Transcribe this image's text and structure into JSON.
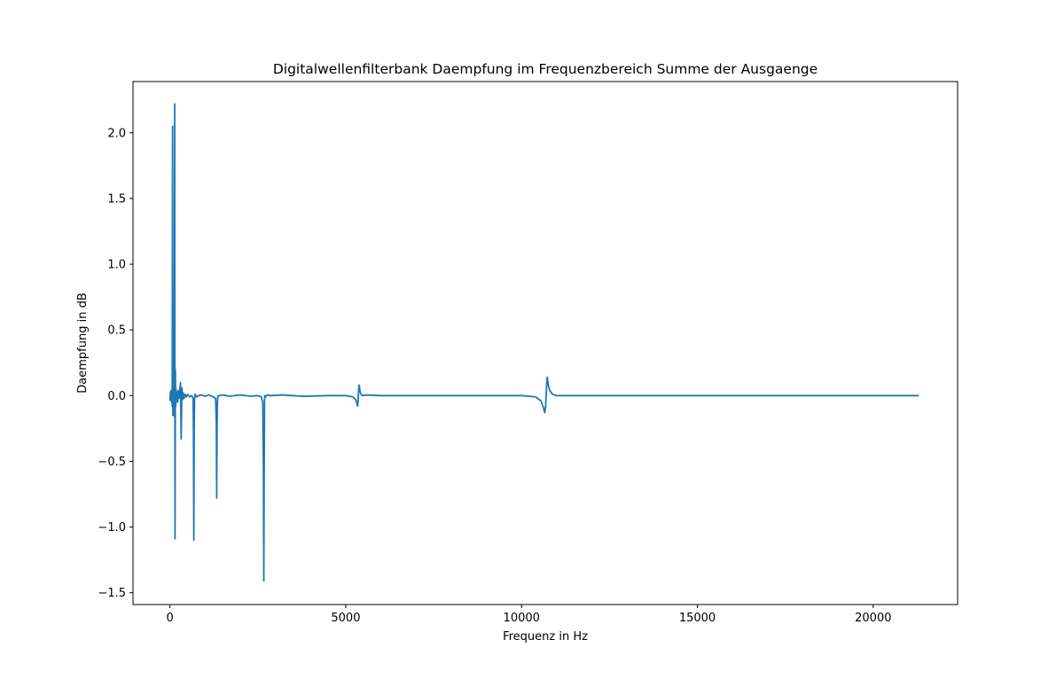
{
  "chart_data": {
    "type": "line",
    "title": "Digitalwellenfilterbank Daempfung im Frequenzbereich Summe der Ausgaenge",
    "xlabel": "Frequenz in Hz",
    "ylabel": "Daempfung in dB",
    "xlim": [
      -1050,
      22400
    ],
    "ylim": [
      -1.59,
      2.39
    ],
    "xticks": [
      0,
      5000,
      10000,
      15000,
      20000
    ],
    "xtick_labels": [
      "0",
      "5000",
      "10000",
      "15000",
      "20000"
    ],
    "yticks": [
      -1.5,
      -1.0,
      -0.5,
      0.0,
      0.5,
      1.0,
      1.5,
      2.0
    ],
    "ytick_labels": [
      "−1.5",
      "−1.0",
      "−0.5",
      "0.0",
      "0.5",
      "1.0",
      "1.5",
      "2.0"
    ],
    "grid": false,
    "legend": "none",
    "series": [
      {
        "color": "#1f77b4",
        "x": [
          0,
          15,
          25,
          35,
          45,
          55,
          65,
          75,
          85,
          95,
          105,
          115,
          125,
          135,
          145,
          155,
          165,
          175,
          185,
          200,
          220,
          240,
          260,
          280,
          300,
          320,
          340,
          360,
          380,
          400,
          430,
          460,
          500,
          560,
          620,
          660,
          670,
          680,
          690,
          700,
          720,
          760,
          820,
          900,
          1000,
          1100,
          1200,
          1300,
          1320,
          1330,
          1340,
          1350,
          1360,
          1380,
          1420,
          1500,
          1700,
          2000,
          2300,
          2500,
          2600,
          2640,
          2660,
          2670,
          2680,
          2690,
          2700,
          2720,
          2760,
          2850,
          3200,
          3800,
          4500,
          5000,
          5200,
          5280,
          5320,
          5340,
          5355,
          5370,
          5385,
          5400,
          5430,
          5480,
          5600,
          6000,
          7000,
          8000,
          9000,
          10000,
          10400,
          10550,
          10620,
          10660,
          10685,
          10700,
          10715,
          10730,
          10760,
          10800,
          10880,
          11000,
          11300,
          12000,
          14000,
          16000,
          18000,
          20000,
          21300
        ],
        "y": [
          -0.04,
          0.03,
          -0.03,
          0.04,
          -0.05,
          0.02,
          -0.08,
          2.05,
          -0.15,
          0.1,
          -0.12,
          0.35,
          -0.16,
          2.22,
          -1.09,
          0.2,
          -0.08,
          0.05,
          -0.04,
          0.03,
          -0.05,
          0.04,
          -0.02,
          0.03,
          0.1,
          -0.33,
          0.06,
          -0.03,
          0.02,
          -0.02,
          0.01,
          -0.01,
          0.01,
          -0.01,
          0.0,
          -0.02,
          -0.3,
          -1.1,
          -0.25,
          -0.02,
          0.01,
          -0.01,
          0.0,
          0.005,
          -0.005,
          0.005,
          -0.005,
          -0.02,
          -0.2,
          -0.78,
          -0.25,
          -0.05,
          -0.01,
          0.0,
          0.0,
          0.005,
          -0.005,
          0.005,
          -0.005,
          0.0,
          -0.01,
          -0.05,
          -0.6,
          -1.41,
          -0.6,
          -0.05,
          0.0,
          -0.01,
          0.005,
          0.0,
          0.005,
          -0.005,
          0.0,
          0.0,
          -0.01,
          -0.03,
          -0.06,
          -0.08,
          -0.02,
          0.06,
          0.08,
          0.04,
          0.01,
          0.0,
          0.005,
          0.0,
          0.0,
          0.0,
          0.0,
          0.0,
          -0.01,
          -0.04,
          -0.09,
          -0.13,
          -0.08,
          0.0,
          0.1,
          0.14,
          0.08,
          0.04,
          0.01,
          0.0,
          0.0,
          0.0,
          0.0,
          0.0,
          0.0,
          0.0,
          0.0
        ]
      }
    ]
  }
}
